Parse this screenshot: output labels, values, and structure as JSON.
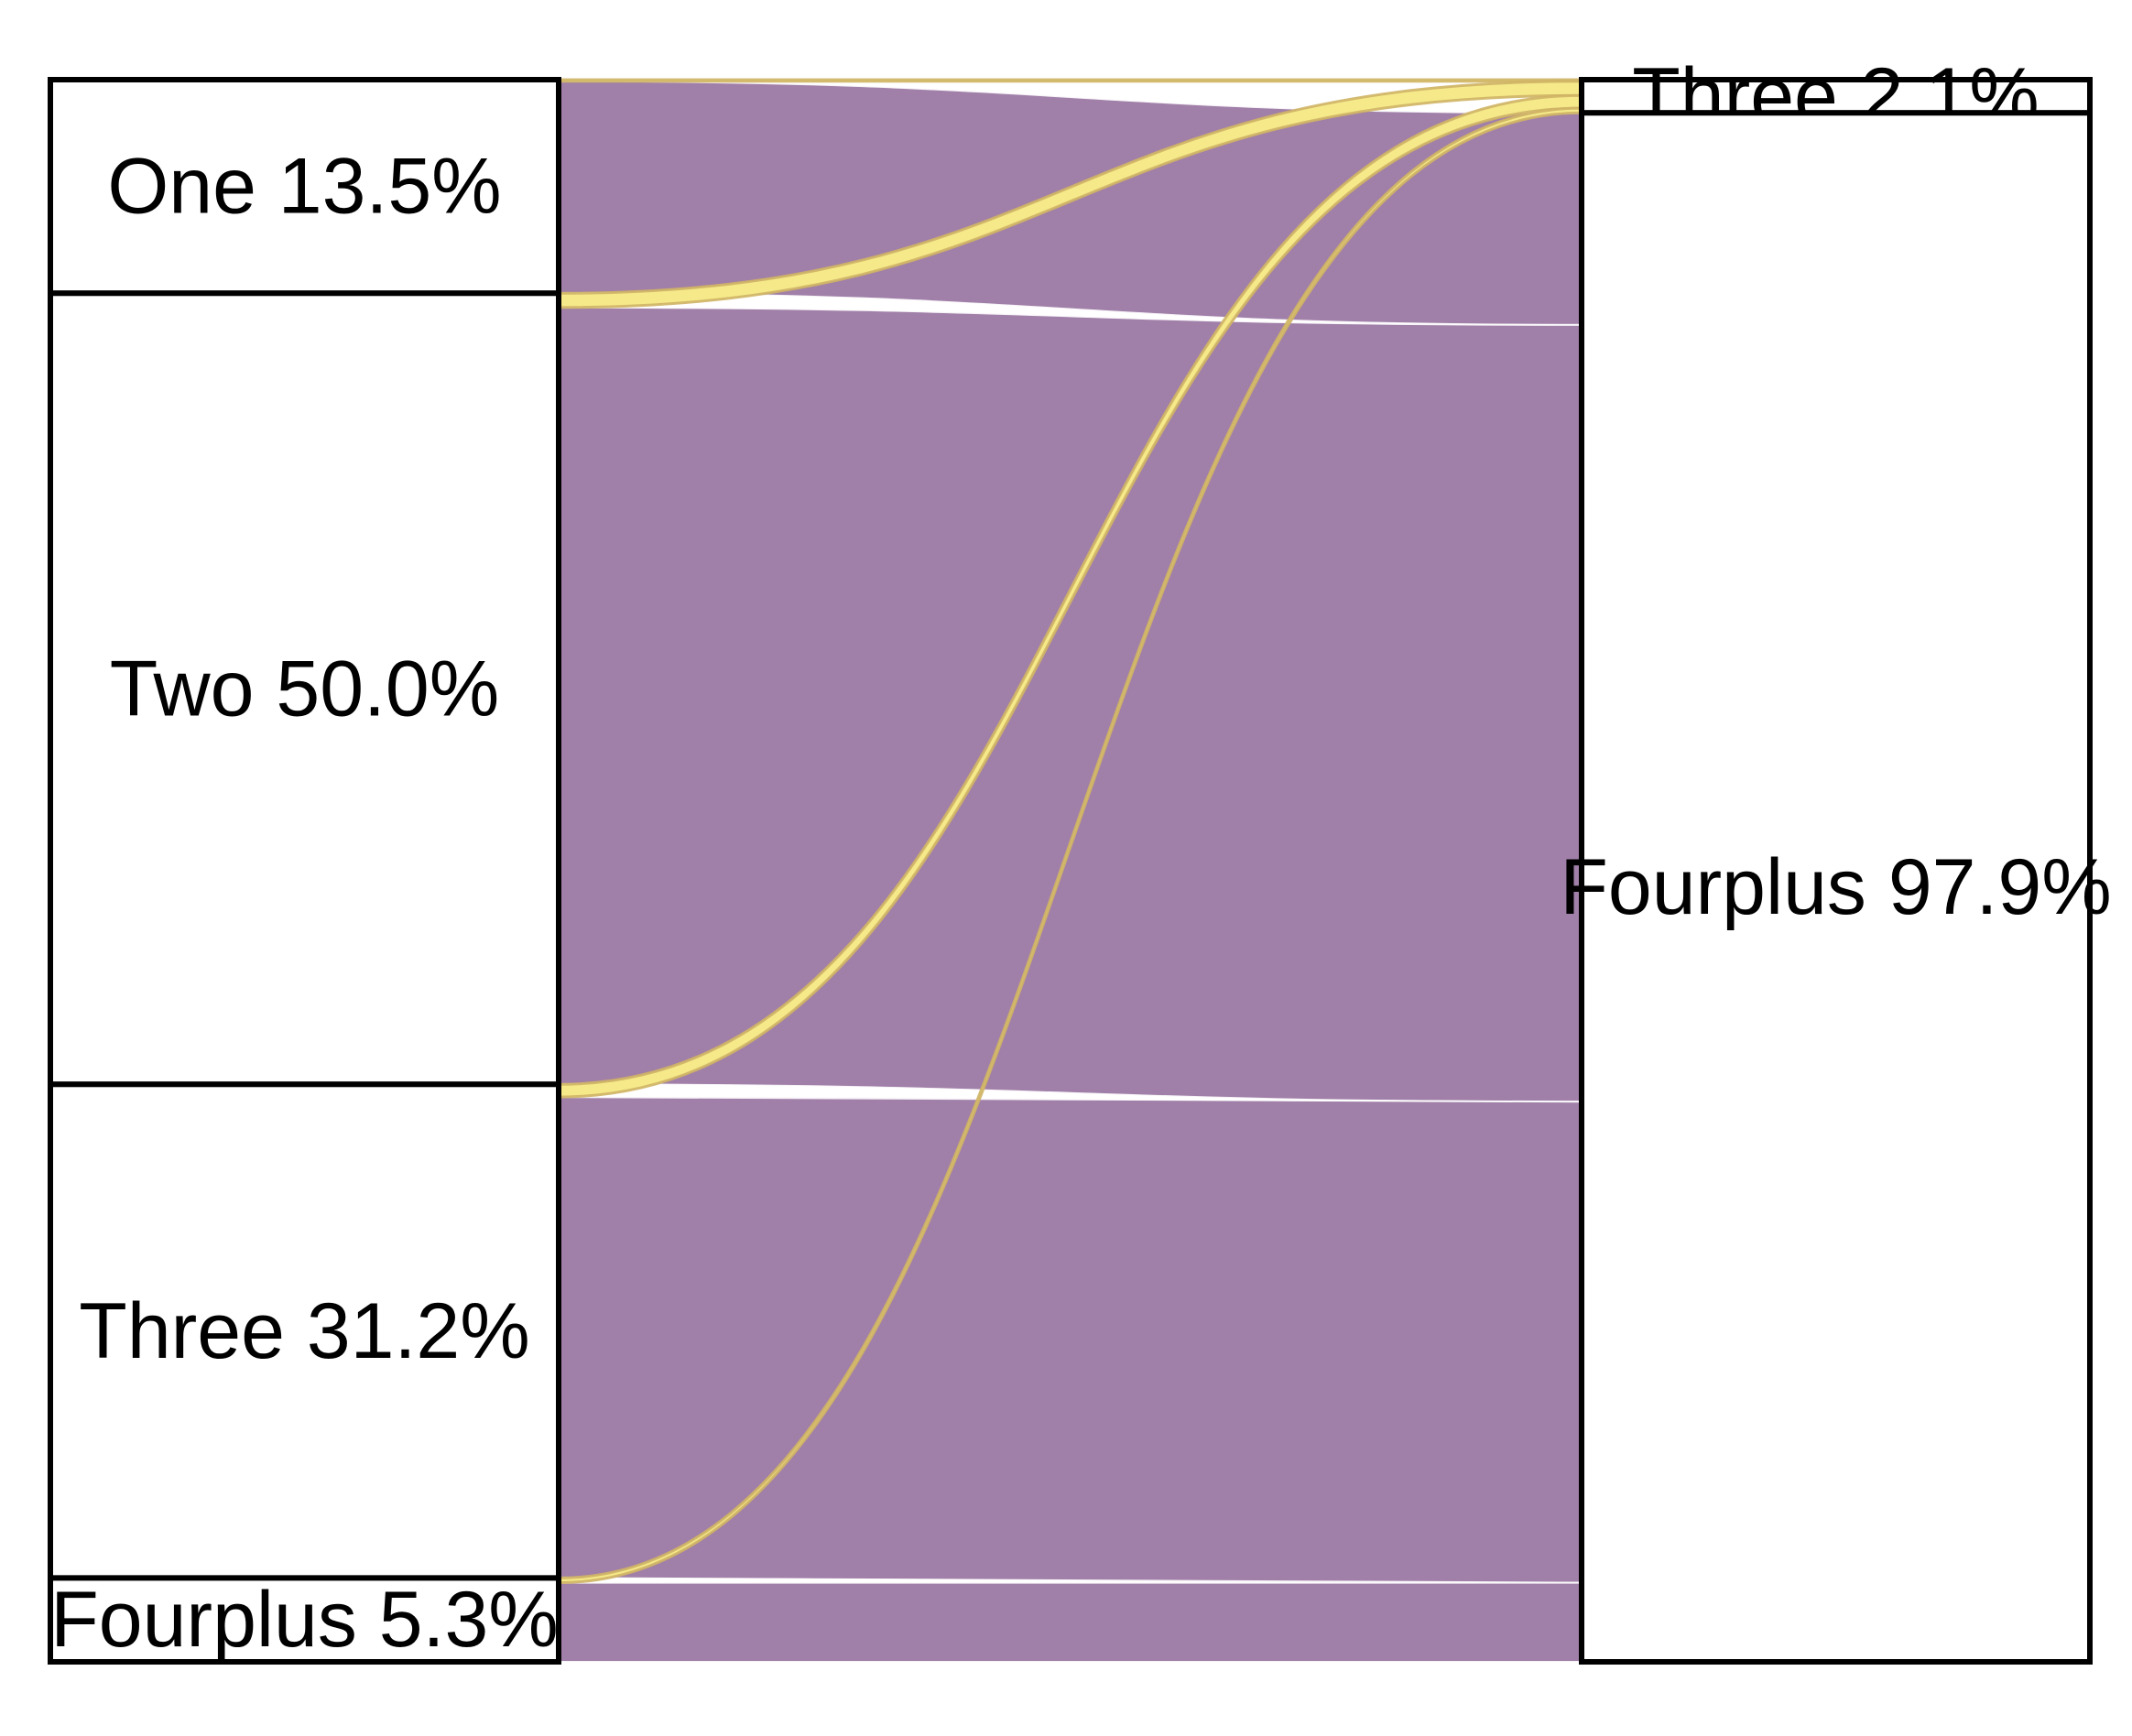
{
  "chart_data": {
    "type": "sankey",
    "source_nodes": [
      {
        "name": "One",
        "percent": 13.5,
        "label": "One 13.5%"
      },
      {
        "name": "Two",
        "percent": 50.0,
        "label": "Two 50.0%"
      },
      {
        "name": "Three",
        "percent": 31.2,
        "label": "Three 31.2%"
      },
      {
        "name": "Fourplus",
        "percent": 5.3,
        "label": "Fourplus 5.3%"
      }
    ],
    "target_nodes": [
      {
        "name": "Three",
        "percent": 2.1,
        "label": "Three 2.1%"
      },
      {
        "name": "Fourplus",
        "percent": 97.9,
        "label": "Fourplus 97.9%"
      }
    ],
    "flows": [
      {
        "source": "One",
        "target": "Three",
        "percent": 0.1
      },
      {
        "source": "One",
        "target": "Fourplus",
        "percent": 13.4
      },
      {
        "source": "Two",
        "target": "Three",
        "percent": 0.9
      },
      {
        "source": "Two",
        "target": "Fourplus",
        "percent": 49.1
      },
      {
        "source": "Three",
        "target": "Three",
        "percent": 0.8
      },
      {
        "source": "Three",
        "target": "Fourplus",
        "percent": 30.4
      },
      {
        "source": "Fourplus",
        "target": "Three",
        "percent": 0.3
      },
      {
        "source": "Fourplus",
        "target": "Fourplus",
        "percent": 5.0
      }
    ],
    "colors": {
      "to_fourplus": "#a07fa8",
      "to_three": "#f5e98a",
      "to_three_shadow": "#cfb465"
    }
  }
}
